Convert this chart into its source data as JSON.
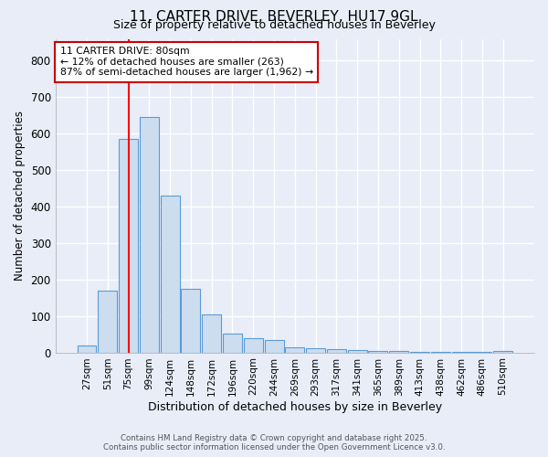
{
  "title_line1": "11, CARTER DRIVE, BEVERLEY, HU17 9GL",
  "title_line2": "Size of property relative to detached houses in Beverley",
  "xlabel": "Distribution of detached houses by size in Beverley",
  "ylabel": "Number of detached properties",
  "bar_labels": [
    "27sqm",
    "51sqm",
    "75sqm",
    "99sqm",
    "124sqm",
    "148sqm",
    "172sqm",
    "196sqm",
    "220sqm",
    "244sqm",
    "269sqm",
    "293sqm",
    "317sqm",
    "341sqm",
    "365sqm",
    "389sqm",
    "413sqm",
    "438sqm",
    "462sqm",
    "486sqm",
    "510sqm"
  ],
  "bar_values": [
    20,
    170,
    585,
    645,
    430,
    175,
    103,
    52,
    40,
    33,
    15,
    12,
    10,
    7,
    5,
    3,
    2,
    1,
    1,
    1,
    5
  ],
  "bar_color": "#ccddf0",
  "bar_edge_color": "#5b9bd5",
  "red_line_index": 2,
  "annotation_title": "11 CARTER DRIVE: 80sqm",
  "annotation_line1": "← 12% of detached houses are smaller (263)",
  "annotation_line2": "87% of semi-detached houses are larger (1,962) →",
  "annotation_box_color": "#ffffff",
  "annotation_box_edge": "#cc0000",
  "ylim": [
    0,
    860
  ],
  "yticks": [
    0,
    100,
    200,
    300,
    400,
    500,
    600,
    700,
    800
  ],
  "bg_color": "#e8edf8",
  "grid_color": "#ffffff",
  "footer_line1": "Contains HM Land Registry data © Crown copyright and database right 2025.",
  "footer_line2": "Contains public sector information licensed under the Open Government Licence v3.0."
}
